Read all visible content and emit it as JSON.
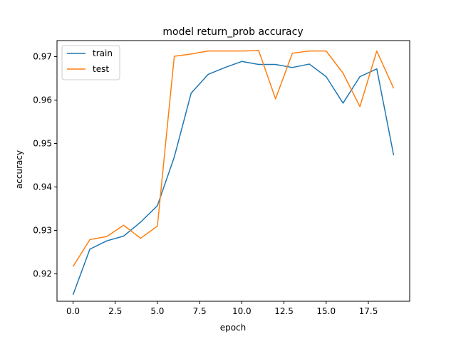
{
  "chart_data": {
    "type": "line",
    "title": "model return_prob accuracy",
    "xlabel": "epoch",
    "ylabel": "accuracy",
    "xlim": [
      -0.95,
      19.95
    ],
    "ylim": [
      0.9137,
      0.9737
    ],
    "xticks": [
      0.0,
      2.5,
      5.0,
      7.5,
      10.0,
      12.5,
      15.0,
      17.5
    ],
    "xtick_labels": [
      "0.0",
      "2.5",
      "5.0",
      "7.5",
      "10.0",
      "12.5",
      "15.0",
      "17.5"
    ],
    "yticks": [
      0.92,
      0.93,
      0.94,
      0.95,
      0.96,
      0.97
    ],
    "ytick_labels": [
      "0.92",
      "0.93",
      "0.94",
      "0.95",
      "0.96",
      "0.97"
    ],
    "grid": false,
    "legend_position": "top-left",
    "x": [
      0,
      1,
      2,
      3,
      4,
      5,
      6,
      7,
      8,
      9,
      10,
      11,
      12,
      13,
      14,
      15,
      16,
      17,
      18,
      19
    ],
    "series": [
      {
        "name": "train",
        "color": "#1f77b4",
        "values": [
          0.9152,
          0.9257,
          0.9276,
          0.9287,
          0.9319,
          0.9357,
          0.9469,
          0.9616,
          0.9659,
          0.9675,
          0.9689,
          0.9682,
          0.9682,
          0.9675,
          0.9683,
          0.9654,
          0.9593,
          0.9654,
          0.9672,
          0.9473
        ]
      },
      {
        "name": "test",
        "color": "#ff7f0e",
        "values": [
          0.9217,
          0.9279,
          0.9286,
          0.9312,
          0.9282,
          0.931,
          0.9701,
          0.9706,
          0.9713,
          0.9713,
          0.9713,
          0.9714,
          0.9603,
          0.9708,
          0.9713,
          0.9713,
          0.9662,
          0.9585,
          0.9713,
          0.9627
        ]
      }
    ]
  }
}
